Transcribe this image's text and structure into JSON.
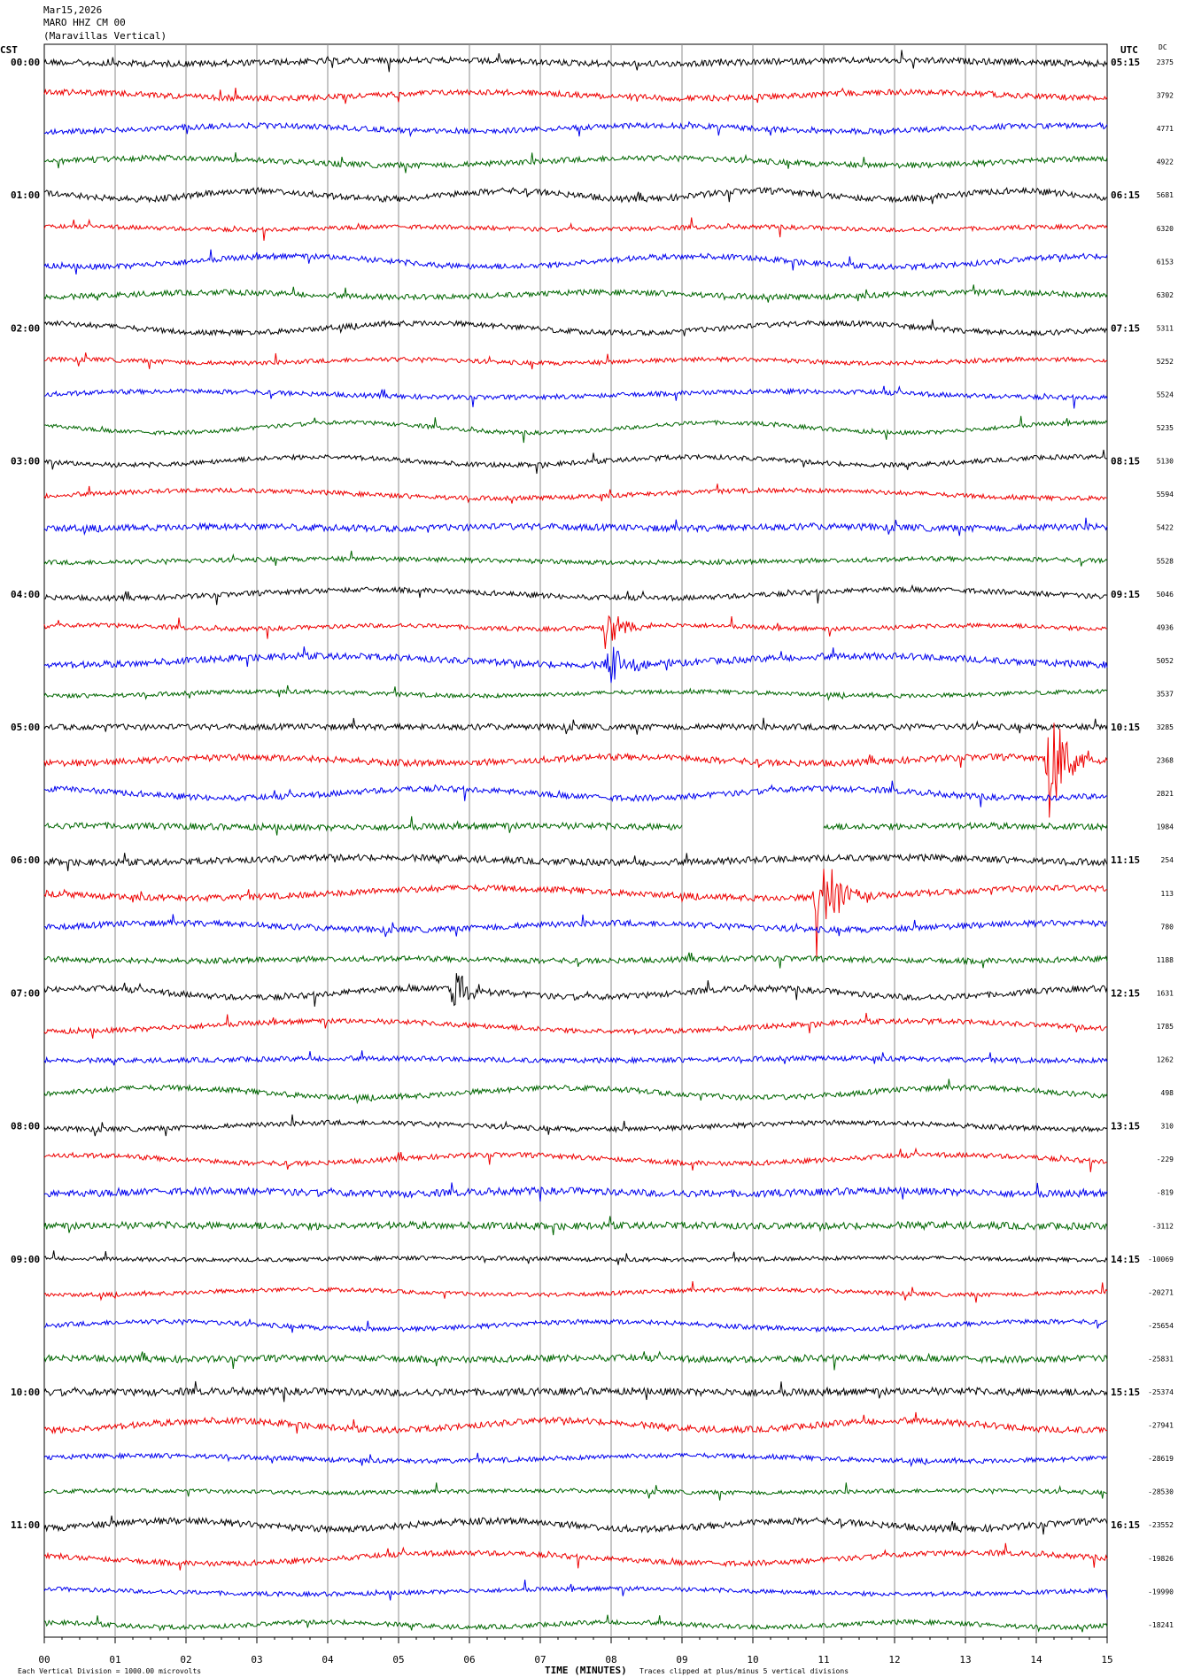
{
  "header": {
    "date": "Mar15,2026",
    "station": "MARO HHZ CM 00",
    "location": "(Maravillas Vertical)"
  },
  "left_axis_label": "CST",
  "right_axis_label": "UTC",
  "dc_label": "DC",
  "footer": {
    "scale_note": "Each Vertical Division = 1000.00 microvolts",
    "xlabel": "TIME (MINUTES)",
    "clip_note": "Traces clipped at plus/minus 5 vertical divisions"
  },
  "chart_data": {
    "type": "line",
    "title": "",
    "xlabel": "TIME (MINUTES)",
    "xlim": [
      0,
      15
    ],
    "x_ticks": [
      "00",
      "01",
      "02",
      "03",
      "04",
      "05",
      "06",
      "07",
      "08",
      "09",
      "10",
      "11",
      "12",
      "13",
      "14",
      "15"
    ],
    "trace_minutes": 15,
    "trace_colors": [
      "#000000",
      "#ee0000",
      "#0000ee",
      "#006600"
    ],
    "hour_labels_cst": [
      "00:00",
      "01:00",
      "02:00",
      "03:00",
      "04:00",
      "05:00",
      "06:00",
      "07:00",
      "08:00",
      "09:00",
      "10:00",
      "11:00"
    ],
    "hour_labels_utc": [
      "05:15",
      "06:15",
      "07:15",
      "08:15",
      "09:15",
      "10:15",
      "11:15",
      "12:15",
      "13:15",
      "14:15",
      "15:15",
      "16:15"
    ],
    "dc_offsets": [
      "2375",
      "3792",
      "4771",
      "4922",
      "5681",
      "6320",
      "6153",
      "6302",
      "5311",
      "5252",
      "5524",
      "5235",
      "5130",
      "5594",
      "5422",
      "5528",
      "5046",
      "4936",
      "5052",
      "3537",
      "3285",
      "2368",
      "2821",
      "1984",
      "254",
      "113",
      "780",
      "1188",
      "1631",
      "1785",
      "1262",
      "498",
      "310",
      "-229",
      "-819",
      "-3112",
      "-10069",
      "-20271",
      "-25654",
      "-25831",
      "-25374",
      "-27941",
      "-28619",
      "-28530",
      "-23552",
      "-19826",
      "-19990",
      "-18241"
    ],
    "events": [
      {
        "trace": 21,
        "minute": 14.15,
        "amplitude": "clipped"
      },
      {
        "trace": 25,
        "minute": 10.9,
        "amplitude": "clipped"
      },
      {
        "trace": 28,
        "minute": 5.75,
        "amplitude": "large"
      },
      {
        "trace": 17,
        "minute": 7.9,
        "amplitude": "large"
      },
      {
        "trace": 18,
        "minute": 7.95,
        "amplitude": "large"
      }
    ],
    "data_gaps": [
      {
        "trace": 23,
        "start_minute": 9.0,
        "end_minute": 11.0
      }
    ]
  }
}
